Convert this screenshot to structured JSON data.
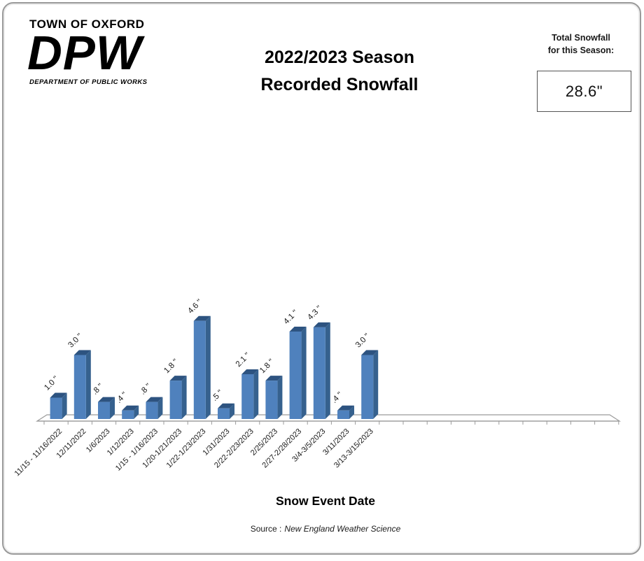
{
  "header": {
    "town": "TOWN OF OXFORD",
    "logo": "DPW",
    "department": "DEPARTMENT OF PUBLIC WORKS",
    "title_line1": "2022/2023 Season",
    "title_line2": "Recorded Snowfall",
    "total_label_line1": "Total Snowfall",
    "total_label_line2": "for this Season:",
    "total_value": "28.6\""
  },
  "chart_data": {
    "type": "bar",
    "title": "2022/2023 Season Recorded Snowfall",
    "xlabel": "Snow Event Date",
    "ylabel": "",
    "categories": [
      "11/15 - 11/16/2022",
      "12/11/2022",
      "1/6/2023",
      "1/12/2023",
      "1/15 - 1/16/2023",
      "1/20-1/21/2023",
      "1/22-1/23/2023",
      "1/31/2023",
      "2/22-2/23/2023",
      "2/25/2023",
      "2/27-2/28/2023",
      "3/4-3/5/2023",
      "3/11/2023",
      "3/13-3/15/2023"
    ],
    "values": [
      1.0,
      3.0,
      0.8,
      0.4,
      0.8,
      1.8,
      4.6,
      0.5,
      2.1,
      1.8,
      4.1,
      4.3,
      0.4,
      3.0
    ],
    "value_labels": [
      "1.0 \"",
      "3.0 \"",
      ".8 \"",
      ".4 \"",
      ".8 \"",
      "1.8 \"",
      "4.6 \"",
      ".5 \"",
      "2.1 \"",
      "1.8 \"",
      "4.1 \"",
      "4.3 \"",
      ".4 \"",
      "3.0 \""
    ],
    "total": 28.6,
    "ylim": [
      0,
      5
    ],
    "grid": false,
    "legend": null,
    "effect": "3d",
    "empty_trailing_slots": 10,
    "label_rotation_deg": 45,
    "bar_color": "#4f81bd",
    "bar_side_color": "#36618e",
    "bar_top_color": "#2d5380",
    "axis_color": "#9b9b9b",
    "text_color": "#1a1a1a"
  },
  "footer": {
    "xaxis_title": "Snow Event Date",
    "source_prefix": "Source :",
    "source_name": "New England Weather Science"
  }
}
